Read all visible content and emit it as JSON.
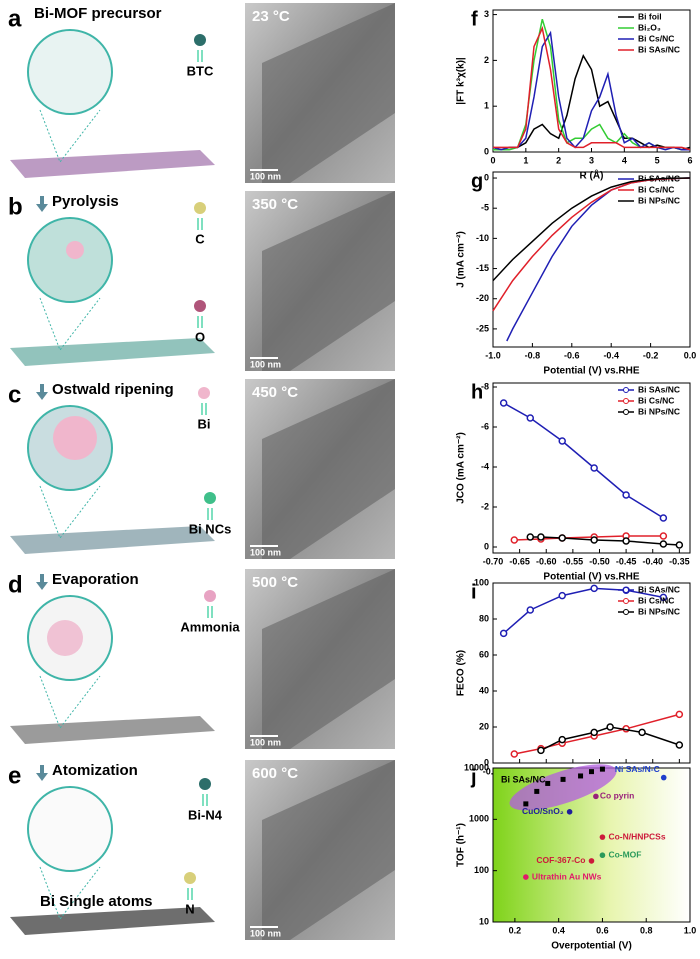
{
  "panels": [
    {
      "letter": "a",
      "title": "Bi-MOF precursor",
      "labels": [
        "BTC"
      ]
    },
    {
      "letter": "b",
      "title": "Pyrolysis",
      "labels": [
        "C",
        "O"
      ]
    },
    {
      "letter": "c",
      "title": "Ostwald ripening",
      "labels": [
        "Bi",
        "Bi NCs"
      ]
    },
    {
      "letter": "d",
      "title": "Evaporation",
      "labels": [
        "Ammonia"
      ]
    },
    {
      "letter": "e",
      "title": "Atomization",
      "labels": [
        "Bi-N4",
        "Bi Single atoms",
        "N"
      ]
    }
  ],
  "tem": [
    {
      "temperature": "23 °C",
      "scale_bar": "100 nm"
    },
    {
      "temperature": "350 °C",
      "scale_bar": "100 nm"
    },
    {
      "temperature": "450 °C",
      "scale_bar": "100 nm"
    },
    {
      "temperature": "500 °C",
      "scale_bar": "100 nm"
    },
    {
      "temperature": "600 °C",
      "scale_bar": "100 nm"
    }
  ],
  "chart_data": [
    {
      "type": "line",
      "panel": "f",
      "xlabel": "R (Å)",
      "ylabel": "|FT k³χ(k)|",
      "xlim": [
        0,
        6
      ],
      "xticks": [
        0,
        1,
        2,
        3,
        4,
        5,
        6
      ],
      "ylim": [
        0,
        3.1
      ],
      "yticks": [
        0,
        1,
        2,
        3
      ],
      "legend": "upper right",
      "x": [
        0,
        0.25,
        0.5,
        0.75,
        1,
        1.25,
        1.5,
        1.75,
        2,
        2.25,
        2.5,
        2.75,
        3,
        3.25,
        3.5,
        3.75,
        4,
        4.25,
        4.5,
        4.75,
        5,
        5.25,
        5.5,
        5.75,
        6
      ],
      "series": [
        {
          "name": "Bi foil",
          "color": "#000000",
          "values": [
            0.1,
            0.05,
            0.1,
            0.1,
            0.2,
            0.5,
            0.6,
            0.4,
            0.3,
            0.8,
            1.6,
            2.1,
            1.8,
            1.0,
            1.1,
            0.7,
            0.3,
            0.3,
            0.2,
            0.1,
            0.15,
            0.1,
            0.1,
            0.05,
            0.1
          ]
        },
        {
          "name": "Bi₂O₃",
          "color": "#33cc33",
          "values": [
            0.05,
            0.05,
            0.05,
            0.1,
            0.6,
            2.0,
            2.9,
            2.3,
            0.7,
            0.2,
            0.3,
            0.3,
            0.5,
            0.6,
            0.3,
            0.2,
            0.4,
            0.2,
            0.1,
            0.2,
            0.1,
            0.1,
            0.1,
            0.05,
            0.05
          ]
        },
        {
          "name": "Bi Cs/NC",
          "color": "#1f1fb4",
          "values": [
            0.1,
            0.05,
            0.1,
            0.1,
            0.3,
            1.2,
            2.3,
            2.6,
            1.2,
            0.3,
            0.1,
            0.3,
            0.9,
            1.2,
            1.7,
            0.8,
            0.2,
            0.3,
            0.1,
            0.2,
            0.1,
            0.05,
            0.1,
            0.05,
            0.05
          ]
        },
        {
          "name": "Bi SAs/NC",
          "color": "#e0202a",
          "values": [
            0.1,
            0.1,
            0.1,
            0.1,
            0.5,
            2.3,
            2.7,
            1.8,
            0.5,
            0.2,
            0.1,
            0.1,
            0.2,
            0.2,
            0.2,
            0.2,
            0.1,
            0.1,
            0.1,
            0.1,
            0.1,
            0.1,
            0.1,
            0.1,
            0.05
          ]
        }
      ]
    },
    {
      "type": "line",
      "panel": "g",
      "xlabel": "Potential (V) vs.RHE",
      "ylabel": "J (mA cm⁻²)",
      "xlim": [
        -1,
        0
      ],
      "xticks": [
        {
          "value": -1,
          "label": "-1.0"
        },
        -0.8,
        -0.6,
        -0.4,
        -0.2,
        {
          "value": 0,
          "label": "0.0"
        }
      ],
      "ylim": [
        -28,
        1
      ],
      "yticks": [
        -25,
        -20,
        -15,
        -10,
        -5,
        0
      ],
      "legend": "upper right",
      "series": [
        {
          "name": "Bi SAs/NC",
          "color": "#1f1fb4",
          "x": [
            -0.93,
            -0.9,
            -0.8,
            -0.7,
            -0.6,
            -0.5,
            -0.4,
            -0.3,
            -0.2,
            -0.1,
            0
          ],
          "values": [
            -27,
            -25,
            -19,
            -13,
            -8,
            -4.5,
            -2,
            -0.8,
            -0.3,
            -0.1,
            0
          ]
        },
        {
          "name": "Bi Cs/NC",
          "color": "#e0202a",
          "x": [
            -1,
            -0.9,
            -0.8,
            -0.7,
            -0.6,
            -0.5,
            -0.4,
            -0.3,
            -0.2,
            -0.1,
            0
          ],
          "values": [
            -22,
            -17,
            -13,
            -9.5,
            -6.5,
            -4,
            -2,
            -0.8,
            -0.3,
            -0.1,
            0
          ]
        },
        {
          "name": "Bi NPs/NC",
          "color": "#000000",
          "x": [
            -1,
            -0.9,
            -0.8,
            -0.7,
            -0.6,
            -0.5,
            -0.4,
            -0.3,
            -0.2,
            -0.1,
            0
          ],
          "values": [
            -17,
            -13.5,
            -10.5,
            -7.5,
            -5,
            -3,
            -1.5,
            -0.6,
            -0.2,
            -0.05,
            0
          ]
        }
      ]
    },
    {
      "type": "line",
      "panel": "h",
      "markers": true,
      "xlabel": "Potential (V) vs.RHE",
      "ylabel": "JCO (mA cm⁻²)",
      "xlim": [
        -0.7,
        -0.33
      ],
      "xticks": [
        {
          "value": -0.7,
          "label": "-0.70"
        },
        -0.65,
        {
          "value": -0.6,
          "label": "-0.60"
        },
        -0.55,
        {
          "value": -0.5,
          "label": "-0.50"
        },
        -0.45,
        {
          "value": -0.4,
          "label": "-0.40"
        },
        -0.35
      ],
      "ylim": [
        0.3,
        -8.2
      ],
      "yticks": [
        0,
        -2,
        -4,
        -6,
        -8
      ],
      "legend": "upper right",
      "series": [
        {
          "name": "Bi SAs/NC",
          "color": "#1f1fb4",
          "x": [
            -0.68,
            -0.63,
            -0.57,
            -0.51,
            -0.45,
            -0.38
          ],
          "values": [
            -7.2,
            -6.45,
            -5.3,
            -3.95,
            -2.6,
            -1.45
          ]
        },
        {
          "name": "Bi Cs/NC",
          "color": "#e0202a",
          "x": [
            -0.66,
            -0.61,
            -0.57,
            -0.51,
            -0.45,
            -0.38
          ],
          "values": [
            -0.35,
            -0.4,
            -0.45,
            -0.5,
            -0.55,
            -0.55
          ]
        },
        {
          "name": "Bi NPs/NC",
          "color": "#000000",
          "x": [
            -0.63,
            -0.61,
            -0.57,
            -0.51,
            -0.45,
            -0.38,
            -0.35
          ],
          "values": [
            -0.5,
            -0.5,
            -0.45,
            -0.35,
            -0.3,
            -0.15,
            -0.1
          ]
        }
      ]
    },
    {
      "type": "line",
      "panel": "i",
      "markers": true,
      "xlabel": "Potential (V) vs.RHE",
      "ylabel": "FECO (%)",
      "xlim": [
        -0.7,
        -0.33
      ],
      "xticks": [
        {
          "value": -0.7,
          "label": "-0.70"
        },
        -0.65,
        {
          "value": -0.6,
          "label": "-0.60"
        },
        -0.55,
        {
          "value": -0.5,
          "label": "-0.50"
        },
        -0.45,
        {
          "value": -0.4,
          "label": "-0.40"
        },
        -0.35
      ],
      "ylim": [
        0,
        100
      ],
      "yticks": [
        0,
        20,
        40,
        60,
        80,
        100
      ],
      "legend": "upper right",
      "series": [
        {
          "name": "Bi SAs/NC",
          "color": "#1f1fb4",
          "x": [
            -0.68,
            -0.63,
            -0.57,
            -0.51,
            -0.45,
            -0.38
          ],
          "values": [
            72,
            85,
            93,
            97,
            96,
            92
          ]
        },
        {
          "name": "Bi Cs/NC",
          "color": "#e0202a",
          "x": [
            -0.66,
            -0.61,
            -0.57,
            -0.51,
            -0.45,
            -0.35
          ],
          "values": [
            5,
            8,
            11,
            15,
            19,
            27
          ]
        },
        {
          "name": "Bi NPs/NC",
          "color": "#000000",
          "x": [
            -0.61,
            -0.57,
            -0.51,
            -0.48,
            -0.42,
            -0.35
          ],
          "values": [
            7,
            13,
            17,
            20,
            17,
            10
          ]
        }
      ]
    },
    {
      "type": "scatter",
      "panel": "j",
      "log_y": true,
      "xlabel": "Overpotential (V)",
      "ylabel": "TOF (h⁻¹)",
      "xlim": [
        0.1,
        1
      ],
      "xticks": [
        0.2,
        0.4,
        0.6,
        0.8,
        {
          "value": 1,
          "label": "1.0"
        }
      ],
      "ylim": [
        10,
        10000
      ],
      "yticks": [
        10,
        100,
        1000,
        10000
      ],
      "series": [
        {
          "name": "Bi SAs/NC",
          "color": "#000000",
          "x": [
            0.25,
            0.3,
            0.35,
            0.42,
            0.5,
            0.55,
            0.6
          ],
          "values": [
            2000,
            3500,
            5000,
            6000,
            7000,
            8500,
            9500
          ]
        }
      ],
      "annotations": [
        {
          "text": "Ni SAs/N-C",
          "x": 0.88,
          "y": 6500,
          "color": "#1f3fcc"
        },
        {
          "text": "Co pyrin",
          "x": 0.57,
          "y": 2800,
          "color": "#99227a"
        },
        {
          "text": "CuO/SnO₂",
          "x": 0.45,
          "y": 1400,
          "color": "#1f1f9a"
        },
        {
          "text": "Co-N/HNPCSs",
          "x": 0.6,
          "y": 450,
          "color": "#cc1a3a"
        },
        {
          "text": "Co-MOF",
          "x": 0.6,
          "y": 200,
          "color": "#2a9a5a"
        },
        {
          "text": "COF-367-Co",
          "x": 0.55,
          "y": 155,
          "color": "#cc1a3a"
        },
        {
          "text": "Ultrathin Au NWs",
          "x": 0.25,
          "y": 75,
          "color": "#e01a6a"
        }
      ]
    }
  ]
}
